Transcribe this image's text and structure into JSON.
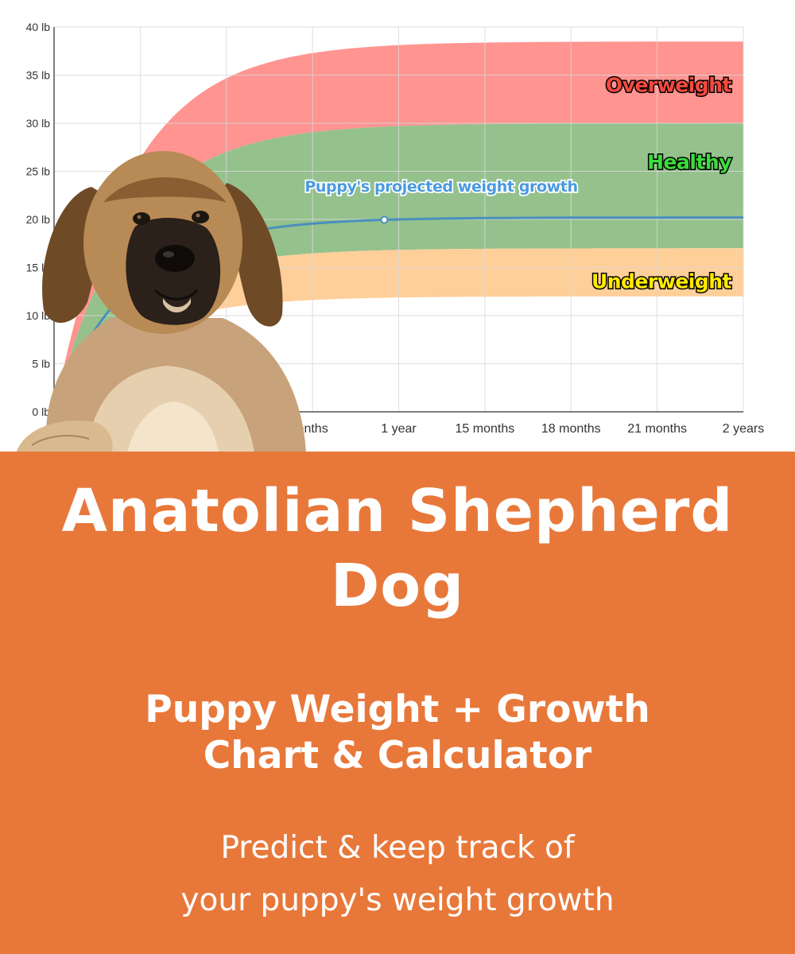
{
  "chart_data": {
    "type": "area",
    "x_ticks": [
      "",
      "",
      "",
      "onths",
      "1 year",
      "15 months",
      "18 months",
      "21 months",
      "2 years"
    ],
    "y_ticks": [
      "0 lb",
      "5 lb",
      "10 lb",
      "15 lb",
      "20 lb",
      "25 lb",
      "30 lb",
      "35 lb",
      "40 lb"
    ],
    "ylim": [
      0,
      40
    ],
    "xlim_months": [
      0,
      24
    ],
    "grid": true,
    "zones": [
      {
        "name": "Overweight",
        "color": "#ff9490",
        "label_color": "#f44a3e",
        "lower_final": 30,
        "upper_final": 38.5
      },
      {
        "name": "Healthy",
        "color": "#95c18c",
        "label_color": "#3bdc3b",
        "lower_final": 17,
        "upper_final": 30
      },
      {
        "name": "Underweight",
        "color": "#ffcf9a",
        "label_color": "#ffeb00",
        "lower_final": 12,
        "upper_final": 17
      }
    ],
    "series": [
      {
        "name": "Puppy's projected weight growth",
        "color": "#4a8fbe",
        "label_color": "#4a9ae0",
        "final": 20.2,
        "marker_at_months": 11.5
      }
    ]
  },
  "banner": {
    "title_line1": "Anatolian Shepherd",
    "title_line2": "Dog",
    "subtitle_line1": "Puppy Weight + Growth",
    "subtitle_line2": "Chart & Calculator",
    "tagline_line1": "Predict & keep track of",
    "tagline_line2": "your puppy's weight growth"
  },
  "colors": {
    "banner_bg": "#e8783a",
    "banner_text": "#ffffff"
  },
  "icons": {
    "puppy": "puppy-photo-icon"
  }
}
